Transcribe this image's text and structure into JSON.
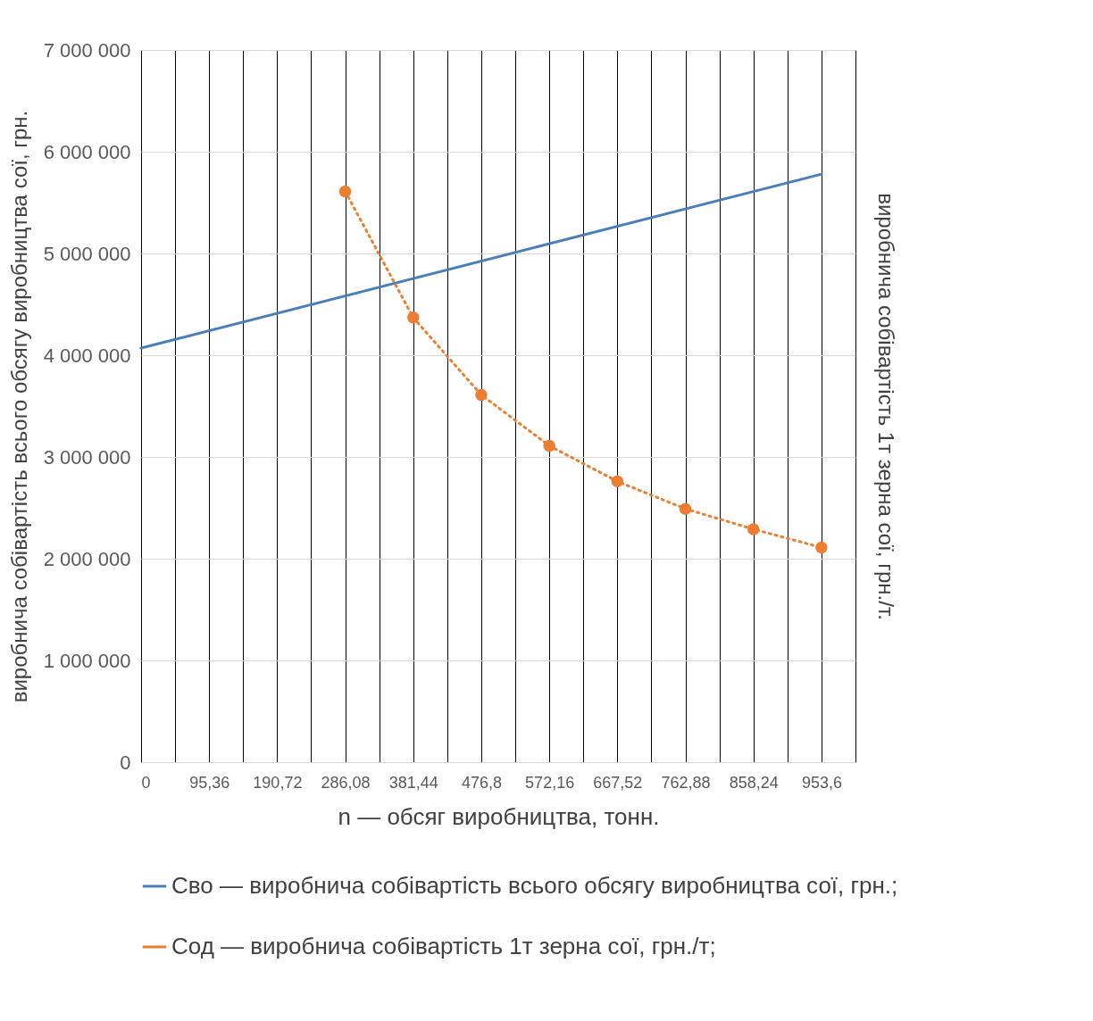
{
  "chart_data": {
    "type": "line",
    "xlabel": "n — обсяг виробництва, тонн.",
    "ylabel": "виробнича собівартість всього обсягу виробництва сої, грн.",
    "y2label": "виробнича собівартість 1т зерна сої, грн./т.",
    "xlim": [
      0,
      1001.28
    ],
    "xticks": [
      {
        "value": 0,
        "label": "0"
      },
      {
        "value": 47.68,
        "label": null
      },
      {
        "value": 95.36,
        "label": "95,36"
      },
      {
        "value": 143.04,
        "label": null
      },
      {
        "value": 190.72,
        "label": "190,72"
      },
      {
        "value": 238.4,
        "label": null
      },
      {
        "value": 286.08,
        "label": "286,08"
      },
      {
        "value": 333.76,
        "label": null
      },
      {
        "value": 381.44,
        "label": "381,44"
      },
      {
        "value": 429.12,
        "label": null
      },
      {
        "value": 476.8,
        "label": "476,8"
      },
      {
        "value": 524.48,
        "label": null
      },
      {
        "value": 572.16,
        "label": "572,16"
      },
      {
        "value": 619.84,
        "label": null
      },
      {
        "value": 667.52,
        "label": "667,52"
      },
      {
        "value": 715.2,
        "label": null
      },
      {
        "value": 762.88,
        "label": "762,88"
      },
      {
        "value": 810.56,
        "label": null
      },
      {
        "value": 858.24,
        "label": "858,24"
      },
      {
        "value": 905.92,
        "label": null
      },
      {
        "value": 953.6,
        "label": "953,6"
      },
      {
        "value": 1001.28,
        "label": null
      }
    ],
    "ylim": [
      0,
      7000000
    ],
    "yticks": [
      {
        "value": 0,
        "label": "0"
      },
      {
        "value": 1000000,
        "label": "1 000 000"
      },
      {
        "value": 2000000,
        "label": "2 000 000"
      },
      {
        "value": 3000000,
        "label": "3 000 000"
      },
      {
        "value": 4000000,
        "label": "4 000 000"
      },
      {
        "value": 5000000,
        "label": "5 000 000"
      },
      {
        "value": 6000000,
        "label": "6 000 000"
      },
      {
        "value": 7000000,
        "label": "7 000 000"
      }
    ],
    "grid": true,
    "legend": "bottom",
    "series": [
      {
        "name": "Сво — виробнича собівартість всього обсягу виробництва сої, грн.;",
        "color": "#4a7ebb",
        "marker": "none",
        "line_style": "solid",
        "x": [
          0,
          953.6
        ],
        "values": [
          4070000,
          5780000
        ]
      },
      {
        "name": "Сод — виробнича собівартість 1т зерна сої, грн./т;",
        "color": "#ed7d31",
        "marker": "circle",
        "line_style": "dotted",
        "x": [
          286.08,
          381.44,
          476.8,
          572.16,
          667.52,
          762.88,
          858.24,
          953.6
        ],
        "values": [
          5610000,
          4370000,
          3610000,
          3110000,
          2760000,
          2490000,
          2290000,
          2110000
        ]
      }
    ]
  }
}
